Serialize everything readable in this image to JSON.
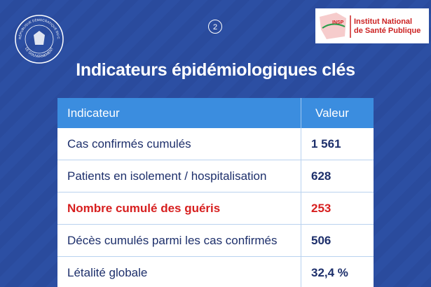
{
  "header": {
    "emblem_top": "RÉPUBLIQUE DÉMOCRATIQUE DU CONGO",
    "emblem_bottom": "LE GOUVERNEMENT",
    "page_number": "2",
    "logo_acronym": "INSP",
    "logo_line1": "Institut National",
    "logo_line2": "de Santé Publique"
  },
  "title": "Indicateurs épidémiologiques clés",
  "table": {
    "columns": [
      "Indicateur",
      "Valeur"
    ],
    "rows": [
      [
        "Cas confirmés cumulés",
        "1 561"
      ],
      [
        "Patients en isolement / hospitalisation",
        "628"
      ],
      [
        "Nombre cumulé des guéris",
        "253"
      ],
      [
        "Décès cumulés parmi les cas confirmés",
        "506"
      ],
      [
        "Létalité globale",
        "32,4 %"
      ]
    ]
  }
}
